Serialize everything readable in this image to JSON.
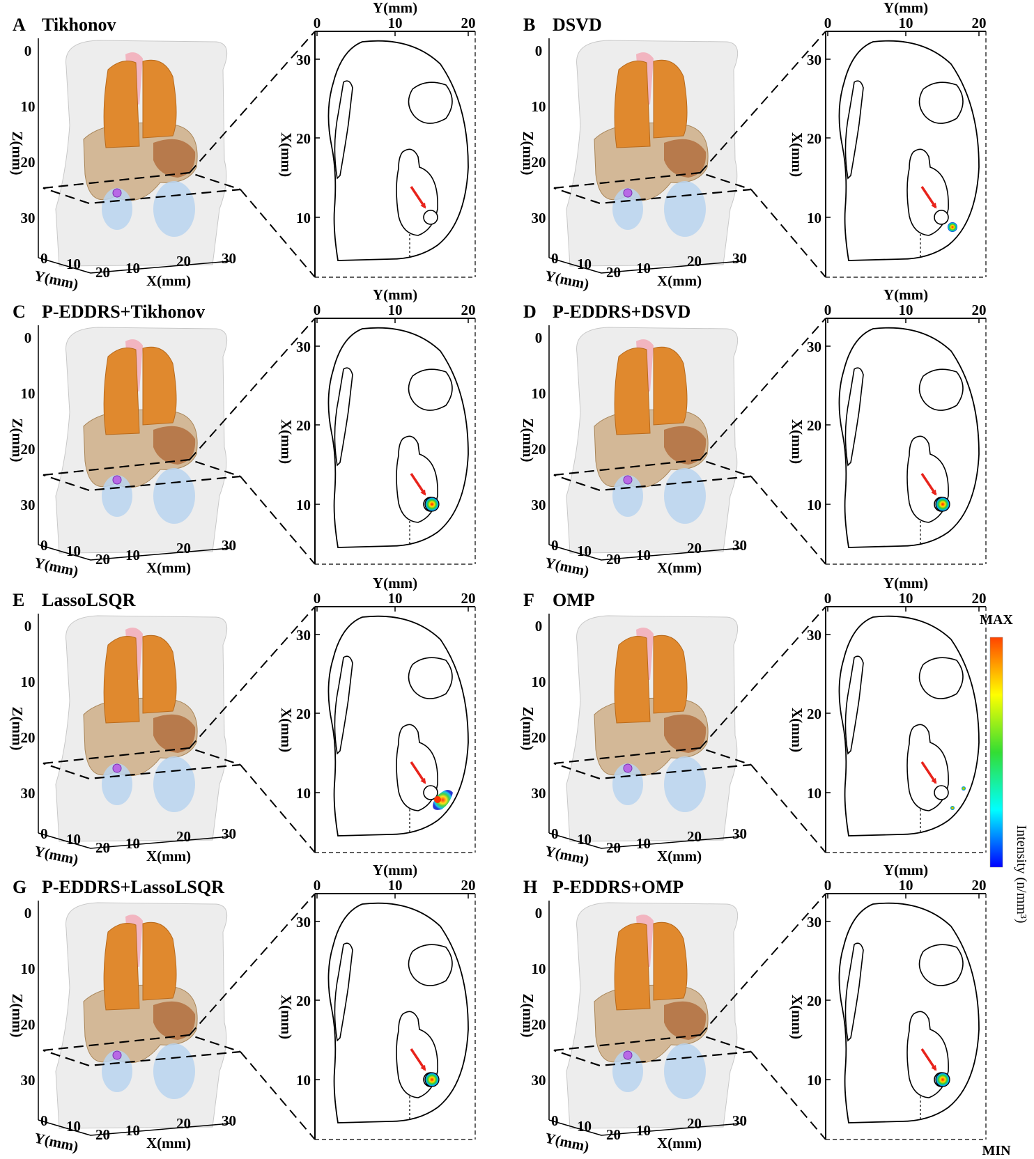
{
  "panels": [
    {
      "letter": "A",
      "title": "Tikhonov",
      "result": "none"
    },
    {
      "letter": "B",
      "title": "DSVD",
      "result": "edge"
    },
    {
      "letter": "C",
      "title": "P-EDDRS+Tikhonov",
      "result": "center"
    },
    {
      "letter": "D",
      "title": "P-EDDRS+DSVD",
      "result": "center"
    },
    {
      "letter": "E",
      "title": "LassoLSQR",
      "result": "spread"
    },
    {
      "letter": "F",
      "title": "OMP",
      "result": "scatter"
    },
    {
      "letter": "G",
      "title": "P-EDDRS+LassoLSQR",
      "result": "center"
    },
    {
      "letter": "H",
      "title": "P-EDDRS+OMP",
      "result": "center"
    }
  ],
  "view3d": {
    "z_label": "Z(mm)",
    "z_ticks": [
      "0",
      "10",
      "20",
      "30"
    ],
    "y_label": "Y(mm)",
    "y_ticks": [
      "0",
      "10",
      "20"
    ],
    "x_label": "X(mm)",
    "x_ticks": [
      "10",
      "20",
      "30"
    ]
  },
  "slice2d": {
    "top_label": "Y(mm)",
    "top_ticks": [
      "0",
      "10",
      "20"
    ],
    "left_label": "X(mm)",
    "left_ticks": [
      "30",
      "20",
      "10"
    ]
  },
  "colorbar": {
    "max_label": "MAX",
    "min_label": "MIN",
    "title": "Intensity (n/mm³)"
  },
  "colors": {
    "lung": "#e0892e",
    "liver": "#c9a57a",
    "kidney": "#b8d3ee",
    "heart": "#f2b5c0",
    "tumor": "#b86ae6",
    "arrow": "#e8231b"
  }
}
